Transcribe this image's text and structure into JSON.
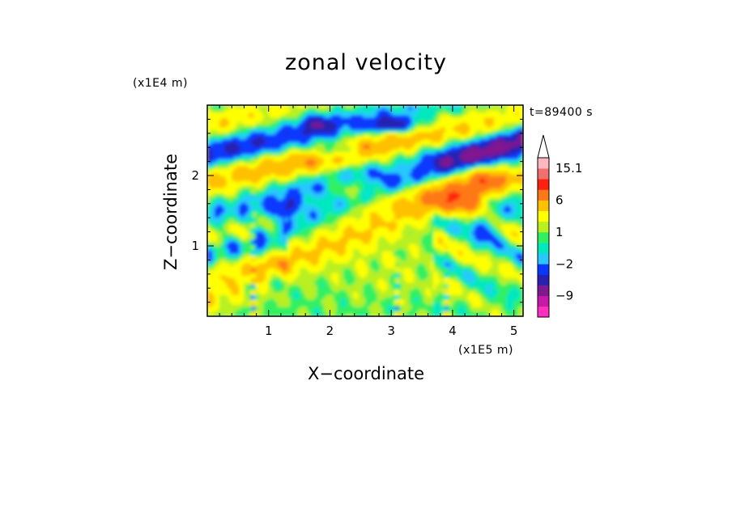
{
  "chart_data": {
    "type": "heatmap",
    "title": "zonal velocity",
    "xlabel": "X−coordinate",
    "ylabel": "Z−coordinate",
    "x_unit": "(x1E5 m)",
    "y_unit": "(x1E4 m)",
    "time_label": "t=89400 s",
    "xlim": [
      0,
      5.15
    ],
    "ylim": [
      0,
      3.0
    ],
    "x_ticks": [
      "1",
      "2",
      "3",
      "4",
      "5"
    ],
    "y_ticks": [
      "1",
      "2"
    ],
    "x_tick_values": [
      1,
      2,
      3,
      4,
      5
    ],
    "y_tick_values": [
      1,
      2
    ],
    "colorbar": {
      "labels": [
        "15.1",
        "6",
        "1",
        "−2",
        "−9"
      ],
      "levels": [
        -15,
        -12,
        -9,
        -6,
        -4,
        -2,
        -1,
        0,
        1,
        2,
        4,
        6,
        9,
        12,
        15.1
      ],
      "colors": [
        "#ff30c0",
        "#c818a8",
        "#801890",
        "#2820b0",
        "#0838ff",
        "#28c8ff",
        "#00e8c0",
        "#30f060",
        "#b8f020",
        "#ffff00",
        "#ffc000",
        "#ff7818",
        "#ff2010",
        "#f07070",
        "#ffb8c0"
      ],
      "over_color": "#ffffff"
    },
    "grid": false,
    "legend": "right"
  }
}
